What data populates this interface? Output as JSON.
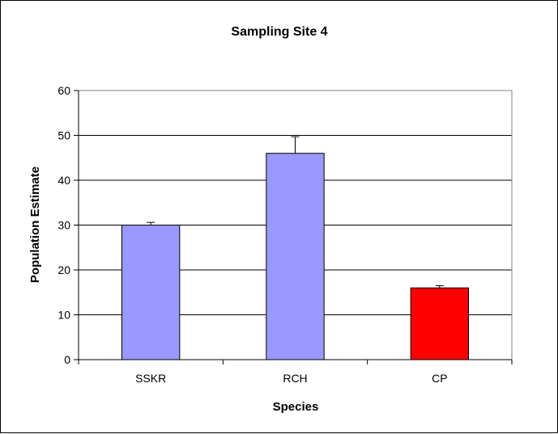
{
  "chart_data": {
    "type": "bar",
    "title": "Sampling Site 4",
    "xlabel": "Species",
    "ylabel": "Population Estimate",
    "categories": [
      "SSKR",
      "RCH",
      "CP"
    ],
    "values": [
      30,
      46,
      16
    ],
    "error_upper": [
      0.6,
      3.7,
      0.5
    ],
    "bar_colors": [
      "#9999ff",
      "#9999ff",
      "#ff0000"
    ],
    "ylim": [
      0,
      60
    ],
    "yticks": [
      0,
      10,
      20,
      30,
      40,
      50,
      60
    ],
    "grid": true,
    "legend": "none"
  }
}
